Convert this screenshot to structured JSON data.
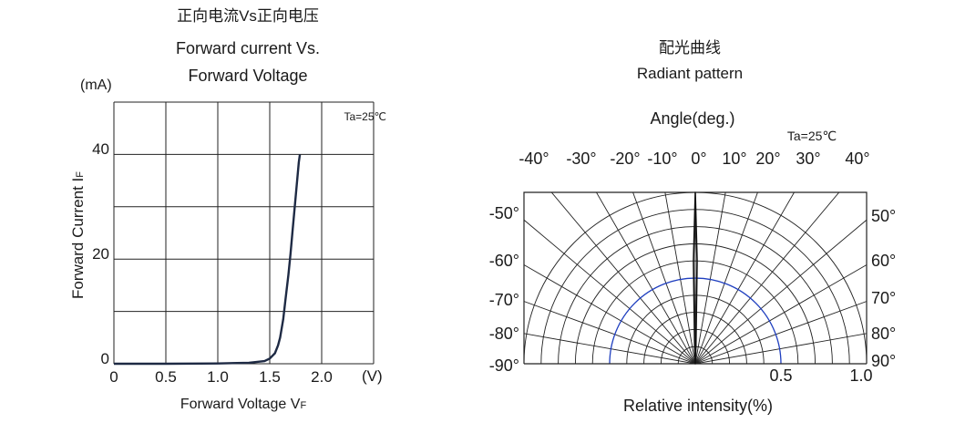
{
  "chart_data": [
    {
      "type": "line",
      "title_cn": "正向电流Vs正向电压",
      "title_line1": "Forward current Vs.",
      "title_line2": "Forward Voltage",
      "unit_y": "(mA)",
      "unit_x": "(V)",
      "ylabel": "Forward Current I",
      "ylabel_sub": "F",
      "xlabel": "Forward Voltage V",
      "xlabel_sub": "F",
      "annotation": "Ta=25℃",
      "xlim": [
        0,
        2.5
      ],
      "ylim": [
        0,
        50
      ],
      "x_ticks": [
        "0",
        "0.5",
        "1.0",
        "1.5",
        "2.0"
      ],
      "x_tick_values": [
        0,
        0.5,
        1.0,
        1.5,
        2.0
      ],
      "y_ticks": [
        "0",
        "20",
        "40"
      ],
      "y_tick_values": [
        0,
        20,
        40
      ],
      "grid": true,
      "series": [
        {
          "x": [
            0,
            0.5,
            1.0,
            1.3,
            1.45,
            1.5,
            1.55,
            1.58,
            1.6,
            1.63,
            1.65,
            1.68,
            1.7,
            1.72,
            1.75,
            1.78,
            1.79
          ],
          "y": [
            0,
            0,
            0.05,
            0.2,
            0.5,
            1.0,
            2.0,
            3.5,
            5.0,
            8.5,
            12.0,
            17.0,
            21.0,
            25.5,
            32.0,
            38.5,
            40.0
          ]
        }
      ]
    },
    {
      "type": "polar",
      "title_cn": "配光曲线",
      "title_en": "Radiant pattern",
      "angle_label": "Angle(deg.)",
      "annotation": "Ta=25℃",
      "xlabel": "Relative intensity(%)",
      "top_angle_labels": [
        "-40°",
        "-30°",
        "-20°",
        "-10°",
        "0°",
        "10°",
        "20°",
        "30°",
        "40°"
      ],
      "left_angle_labels": [
        "-50°",
        "-60°",
        "-70°",
        "-80°",
        "-90°"
      ],
      "right_angle_labels": [
        "50°",
        "60°",
        "70°",
        "80°",
        "90°"
      ],
      "radius_labels": [
        "0.5",
        "1.0"
      ],
      "highlight_radius": 0.5,
      "highlight_color": "#1f3fbf",
      "pattern": {
        "angles": [
          -2,
          -1,
          0,
          1,
          2
        ],
        "intensity": [
          0.1,
          0.6,
          1.0,
          0.6,
          0.1
        ]
      }
    }
  ]
}
